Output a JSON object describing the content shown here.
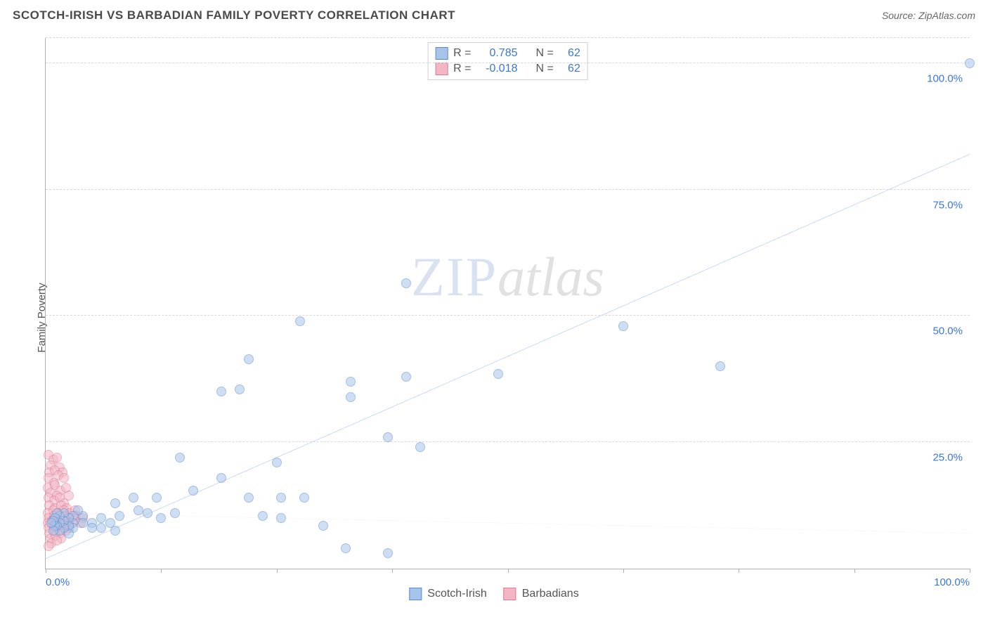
{
  "header": {
    "title": "SCOTCH-IRISH VS BARBADIAN FAMILY POVERTY CORRELATION CHART",
    "source_prefix": "Source: ",
    "source_name": "ZipAtlas.com"
  },
  "watermark": {
    "a": "ZIP",
    "b": "atlas"
  },
  "chart": {
    "type": "scatter",
    "y_axis_label": "Family Poverty",
    "xlim": [
      0,
      100
    ],
    "ylim": [
      0,
      105
    ],
    "x_ticks": [
      0,
      12.5,
      25,
      37.5,
      50,
      62.5,
      75,
      87.5,
      100
    ],
    "x_tick_labels": {
      "0": "0.0%",
      "100": "100.0%"
    },
    "y_gridlines": [
      25,
      50,
      75,
      100,
      105
    ],
    "y_tick_labels": {
      "25": "25.0%",
      "50": "50.0%",
      "75": "75.0%",
      "100": "100.0%"
    },
    "background_color": "#ffffff",
    "grid_color": "#d8d8d8",
    "axis_color": "#b0b0b0",
    "tick_label_color": "#3a76d6",
    "marker_radius": 7,
    "marker_opacity": 0.55,
    "series": [
      {
        "name": "Scotch-Irish",
        "color_fill": "#a7c4ea",
        "color_stroke": "#5a8bd0",
        "trend": {
          "x1": 0,
          "y1": 2,
          "x2": 100,
          "y2": 82,
          "stroke": "#2f72e0",
          "width": 2.2,
          "dash": "none"
        },
        "points": [
          [
            100,
            100
          ],
          [
            62.5,
            48
          ],
          [
            73,
            40
          ],
          [
            39,
            56.5
          ],
          [
            27.5,
            49
          ],
          [
            22,
            41.5
          ],
          [
            19,
            35
          ],
          [
            21,
            35.5
          ],
          [
            39,
            38
          ],
          [
            33,
            37
          ],
          [
            33,
            34
          ],
          [
            37,
            26
          ],
          [
            40.5,
            24
          ],
          [
            49,
            38.5
          ],
          [
            25,
            21
          ],
          [
            14.5,
            22
          ],
          [
            19,
            18
          ],
          [
            22,
            14
          ],
          [
            25.5,
            14
          ],
          [
            28,
            14
          ],
          [
            16,
            15.5
          ],
          [
            23.5,
            10.5
          ],
          [
            25.5,
            10
          ],
          [
            30,
            8.5
          ],
          [
            32.5,
            4
          ],
          [
            37,
            3
          ],
          [
            12,
            14
          ],
          [
            9.5,
            14
          ],
          [
            14,
            11
          ],
          [
            12.5,
            10
          ],
          [
            11,
            11
          ],
          [
            10,
            11.5
          ],
          [
            7.5,
            13
          ],
          [
            8,
            10.5
          ],
          [
            7,
            9
          ],
          [
            7.5,
            7.5
          ],
          [
            6,
            10
          ],
          [
            6,
            8
          ],
          [
            5,
            9
          ],
          [
            5,
            8
          ],
          [
            4,
            10.5
          ],
          [
            4,
            9
          ],
          [
            3.5,
            11.5
          ],
          [
            3,
            10.5
          ],
          [
            3,
            9
          ],
          [
            3,
            8
          ],
          [
            2.5,
            10
          ],
          [
            2.5,
            8.5
          ],
          [
            2.5,
            7
          ],
          [
            2,
            11
          ],
          [
            2,
            9.5
          ],
          [
            2,
            8
          ],
          [
            1.5,
            10.5
          ],
          [
            1.5,
            9
          ],
          [
            1.5,
            7.5
          ],
          [
            1.2,
            11
          ],
          [
            1.2,
            8.5
          ],
          [
            1,
            10
          ],
          [
            1,
            8.5
          ],
          [
            0.8,
            9.5
          ],
          [
            0.8,
            7.5
          ],
          [
            0.6,
            9
          ]
        ]
      },
      {
        "name": "Barbadians",
        "color_fill": "#f2b6c4",
        "color_stroke": "#e07a96",
        "trend": {
          "x1": 0,
          "y1": 11,
          "x2": 100,
          "y2": 7,
          "stroke": "#e39aaa",
          "width": 1.2,
          "dash": "6,5"
        },
        "points": [
          [
            0.3,
            22.5
          ],
          [
            0.8,
            21.5
          ],
          [
            1.2,
            22
          ],
          [
            0.5,
            20.5
          ],
          [
            1.5,
            20
          ],
          [
            0.4,
            19
          ],
          [
            1,
            19.5
          ],
          [
            1.8,
            19
          ],
          [
            0.3,
            18
          ],
          [
            0.9,
            17
          ],
          [
            1.4,
            18.5
          ],
          [
            2,
            18
          ],
          [
            0.2,
            16
          ],
          [
            1,
            16.5
          ],
          [
            1.6,
            15.5
          ],
          [
            2.2,
            16
          ],
          [
            0.5,
            15
          ],
          [
            1.2,
            14.5
          ],
          [
            0.3,
            14
          ],
          [
            0.9,
            13.5
          ],
          [
            1.5,
            14
          ],
          [
            2,
            13
          ],
          [
            2.5,
            14.5
          ],
          [
            0.4,
            12.5
          ],
          [
            1,
            12
          ],
          [
            1.7,
            12.5
          ],
          [
            2.3,
            12
          ],
          [
            0.2,
            11
          ],
          [
            0.8,
            11.5
          ],
          [
            1.4,
            11
          ],
          [
            2,
            11.5
          ],
          [
            2.6,
            11
          ],
          [
            3.2,
            11.5
          ],
          [
            0.3,
            10
          ],
          [
            0.9,
            10.5
          ],
          [
            1.5,
            10
          ],
          [
            2.1,
            10.5
          ],
          [
            2.7,
            10
          ],
          [
            3.3,
            10.5
          ],
          [
            4,
            10
          ],
          [
            0.2,
            9
          ],
          [
            0.7,
            9.5
          ],
          [
            1.3,
            9
          ],
          [
            1.9,
            9.5
          ],
          [
            2.5,
            9
          ],
          [
            3.1,
            9.5
          ],
          [
            3.8,
            9
          ],
          [
            0.3,
            8
          ],
          [
            0.8,
            8.5
          ],
          [
            1.4,
            8
          ],
          [
            2,
            8.5
          ],
          [
            2.6,
            8
          ],
          [
            0.4,
            7
          ],
          [
            1,
            7.5
          ],
          [
            1.6,
            7
          ],
          [
            2.2,
            7.5
          ],
          [
            0.5,
            6
          ],
          [
            1.1,
            6.5
          ],
          [
            1.7,
            6
          ],
          [
            0.6,
            5
          ],
          [
            1.2,
            5.5
          ],
          [
            0.3,
            4.5
          ]
        ]
      }
    ],
    "stats_box": {
      "border_color": "#cfcfcf",
      "rows": [
        {
          "swatch_fill": "#a7c4ea",
          "swatch_stroke": "#5a8bd0",
          "r_label": "R =",
          "r_value": "0.785",
          "n_label": "N =",
          "n_value": "62"
        },
        {
          "swatch_fill": "#f2b6c4",
          "swatch_stroke": "#e07a96",
          "r_label": "R =",
          "r_value": "-0.018",
          "n_label": "N =",
          "n_value": "62"
        }
      ]
    },
    "bottom_legend": [
      {
        "swatch_fill": "#a7c4ea",
        "swatch_stroke": "#5a8bd0",
        "label": "Scotch-Irish"
      },
      {
        "swatch_fill": "#f2b6c4",
        "swatch_stroke": "#e07a96",
        "label": "Barbadians"
      }
    ]
  }
}
